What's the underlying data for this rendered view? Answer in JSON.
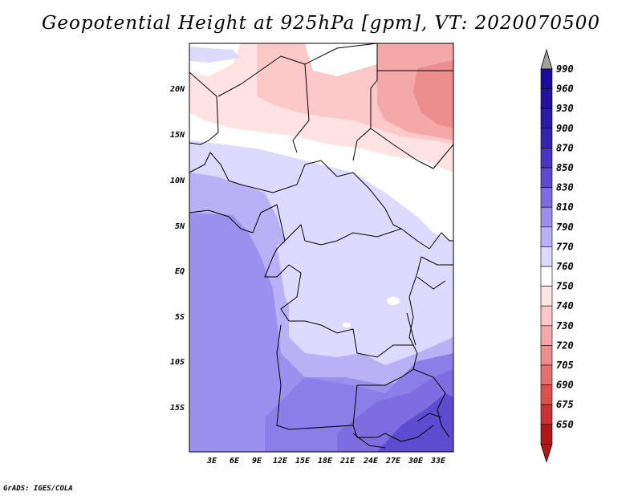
{
  "title": "Geopotential Height at 925hPa [gpm], VT: 2020070500",
  "credit": "GrADS: IGES/COLA",
  "map": {
    "lat_ticks": [
      "20N",
      "15N",
      "10N",
      "5N",
      "EQ",
      "5S",
      "10S",
      "15S"
    ],
    "lon_ticks": [
      "3E",
      "6E",
      "9E",
      "12E",
      "15E",
      "18E",
      "21E",
      "24E",
      "27E",
      "30E",
      "33E"
    ],
    "lat_range": [
      -19.8,
      24.8
    ],
    "lon_range": [
      0.2,
      35
    ]
  },
  "colorbar": {
    "levels": [
      "990",
      "960",
      "930",
      "900",
      "870",
      "850",
      "830",
      "810",
      "790",
      "770",
      "760",
      "750",
      "740",
      "730",
      "720",
      "705",
      "690",
      "675",
      "650"
    ],
    "colors": [
      "#1c0a9a",
      "#24109e",
      "#2c1aa6",
      "#3424ae",
      "#4834c0",
      "#5e4cd0",
      "#7e6ce0",
      "#9c90ee",
      "#bab0f6",
      "#dcdaff",
      "#ffffff",
      "#ffe2e2",
      "#fcc8c8",
      "#f4a8a8",
      "#ec8e8e",
      "#e47070",
      "#dc5050",
      "#cc3232",
      "#b01818"
    ],
    "top_arrow_color": "#a0a0a0",
    "bottom_arrow_color": "#b01818"
  }
}
